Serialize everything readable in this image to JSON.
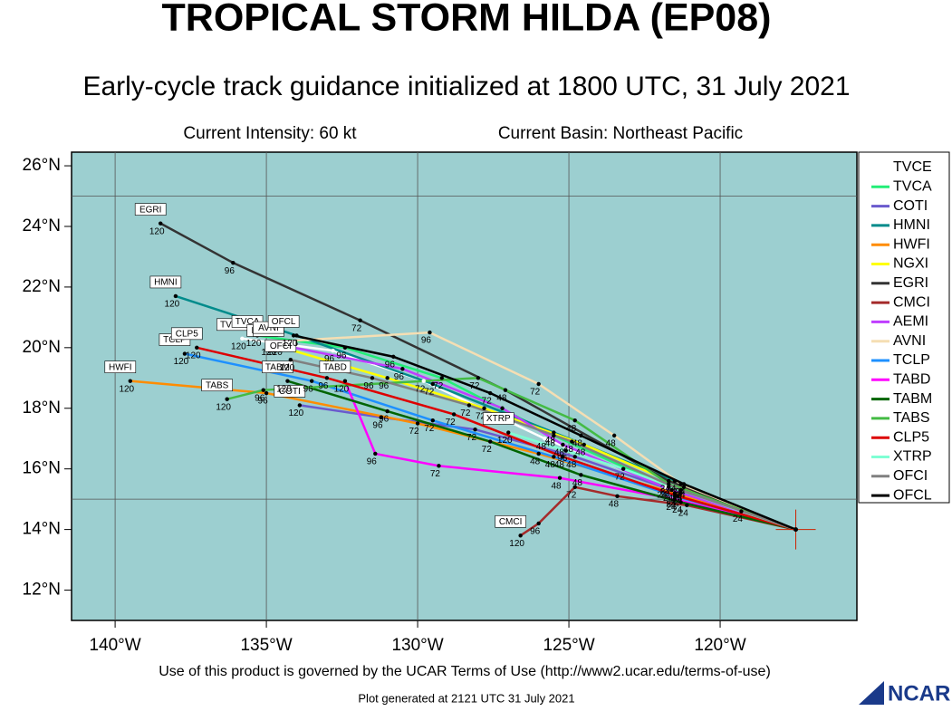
{
  "chart_data": {
    "type": "line",
    "title": "TROPICAL STORM HILDA (EP08)",
    "subtitle": "Early-cycle track guidance initialized at 1800 UTC, 31 July 2021",
    "intensity": "Current Intensity: 60 kt",
    "basin": "Current Basin: Northeast Pacific",
    "footer": "Use of this product is governed by the UCAR Terms of Use (http://www2.ucar.edu/terms-of-use)",
    "generated": "Plot generated at 2121 UTC   31 July 2021",
    "logo": "NCAR",
    "current_position": {
      "lon": -117.5,
      "lat": 14.0
    },
    "hours": [
      24,
      48,
      72,
      96,
      120
    ],
    "xlim": [
      -141.44,
      -115.48
    ],
    "ylim": [
      11.0,
      26.45
    ],
    "xticks": [
      {
        "value": -140,
        "label": "140°W"
      },
      {
        "value": -135,
        "label": "135°W"
      },
      {
        "value": -130,
        "label": "130°W"
      },
      {
        "value": -125,
        "label": "125°W"
      },
      {
        "value": -120,
        "label": "120°W"
      }
    ],
    "yticks": [
      {
        "value": 12,
        "label": "12°N"
      },
      {
        "value": 14,
        "label": "14°N"
      },
      {
        "value": 16,
        "label": "16°N"
      },
      {
        "value": 18,
        "label": "18°N"
      },
      {
        "value": 20,
        "label": "20°N"
      },
      {
        "value": 22,
        "label": "22°N"
      },
      {
        "value": 24,
        "label": "24°N"
      },
      {
        "value": 26,
        "label": "26°N"
      }
    ],
    "ygrid": [
      15,
      25
    ],
    "background": "#9ccfd0",
    "series": [
      {
        "name": "TVCE",
        "color": "#ffffff",
        "x": [
          -121.8,
          -125.8,
          -129.8,
          -132.8,
          -135.8
        ],
        "values": [
          15.4,
          17.0,
          18.9,
          19.9,
          20.3
        ]
      },
      {
        "name": "TVCA",
        "color": "#22ee77",
        "x": [
          -121.7,
          -125.5,
          -129.2,
          -132.4,
          -135.3
        ],
        "values": [
          15.4,
          17.1,
          19.0,
          20.0,
          20.4
        ]
      },
      {
        "name": "COTI",
        "color": "#6a5acd",
        "x": [
          -121.3,
          -124.8,
          -128.1,
          -131.2,
          -133.9
        ],
        "values": [
          15.2,
          16.4,
          17.3,
          17.7,
          18.1
        ]
      },
      {
        "name": "HMNI",
        "color": "#008b8b",
        "x": [
          -121.5,
          -125.5,
          -129.5,
          -134.0,
          -138.0
        ],
        "values": [
          15.6,
          17.2,
          18.8,
          20.4,
          21.7
        ]
      },
      {
        "name": "HWFI",
        "color": "#ff8c00",
        "x": [
          -121.5,
          -126.0,
          -130.0,
          -135.0,
          -139.5
        ],
        "values": [
          15.2,
          16.5,
          17.5,
          18.5,
          18.9
        ]
      },
      {
        "name": "NGXI",
        "color": "#ffff00",
        "x": [
          -121.2,
          -124.5,
          -127.8,
          -131.0,
          -134.8
        ],
        "values": [
          15.4,
          16.8,
          18.0,
          19.0,
          20.1
        ]
      },
      {
        "name": "EGRI",
        "color": "#333333",
        "x": [
          -121.7,
          -127.1,
          -131.9,
          -136.1,
          -138.5
        ],
        "values": [
          15.6,
          18.6,
          20.9,
          22.8,
          24.1
        ]
      },
      {
        "name": "CMCI",
        "color": "#a52a2a",
        "x": [
          -121.1,
          -123.4,
          -124.8,
          -126.0,
          -126.6
        ],
        "values": [
          14.8,
          15.1,
          15.4,
          14.2,
          13.8
        ]
      },
      {
        "name": "AEMI",
        "color": "#bf3eff",
        "x": [
          -121.6,
          -125.2,
          -127.2,
          -130.5,
          -134.6
        ],
        "values": [
          15.3,
          16.8,
          18.0,
          19.3,
          20.1
        ]
      },
      {
        "name": "AVNI",
        "color": "#f5deb3",
        "x": [
          -121.3,
          -123.5,
          -126.0,
          -129.6,
          -134.6
        ],
        "values": [
          15.5,
          17.1,
          18.8,
          20.5,
          20.2
        ]
      },
      {
        "name": "TCLP",
        "color": "#1e90ff",
        "x": [
          -121.5,
          -125.5,
          -129.5,
          -133.5,
          -137.7
        ],
        "values": [
          15.1,
          16.4,
          17.6,
          18.9,
          19.8
        ]
      },
      {
        "name": "TABD",
        "color": "#ff00ff",
        "x": [
          -121.5,
          -125.3,
          -129.3,
          -131.4,
          -132.4
        ],
        "values": [
          15.0,
          15.7,
          16.1,
          16.5,
          18.9
        ]
      },
      {
        "name": "TABM",
        "color": "#006400",
        "x": [
          -121.3,
          -124.6,
          -127.6,
          -131.0,
          -134.3
        ],
        "values": [
          14.9,
          15.8,
          16.9,
          17.9,
          18.9
        ]
      },
      {
        "name": "TABS",
        "color": "#44bb44",
        "x": [
          -121.7,
          -124.8,
          -128.0,
          -135.1,
          -136.3
        ],
        "values": [
          15.5,
          17.6,
          19.0,
          18.6,
          18.3
        ]
      },
      {
        "name": "CLP5",
        "color": "#dd0000",
        "x": [
          -121.4,
          -125.2,
          -128.8,
          -133.0,
          -137.3
        ],
        "values": [
          15.1,
          16.4,
          17.8,
          19.0,
          20.0
        ]
      },
      {
        "name": "XTRP",
        "color": "#7fffd4",
        "x": [
          -119.3,
          -121.3,
          -123.2,
          -125.1,
          -127.0
        ],
        "values": [
          14.6,
          15.3,
          16.0,
          16.6,
          17.2
        ]
      },
      {
        "name": "OFCI",
        "color": "#808080",
        "x": [
          -121.3,
          -124.9,
          -128.3,
          -131.5,
          -134.2
        ],
        "values": [
          15.3,
          16.9,
          18.1,
          19.0,
          19.6
        ]
      },
      {
        "name": "OFCL",
        "color": "#000000",
        "x": [
          -121.2,
          -124.6,
          -127.6,
          -130.8,
          -134.1
        ],
        "values": [
          15.5,
          17.1,
          18.5,
          19.7,
          20.4
        ]
      }
    ]
  }
}
